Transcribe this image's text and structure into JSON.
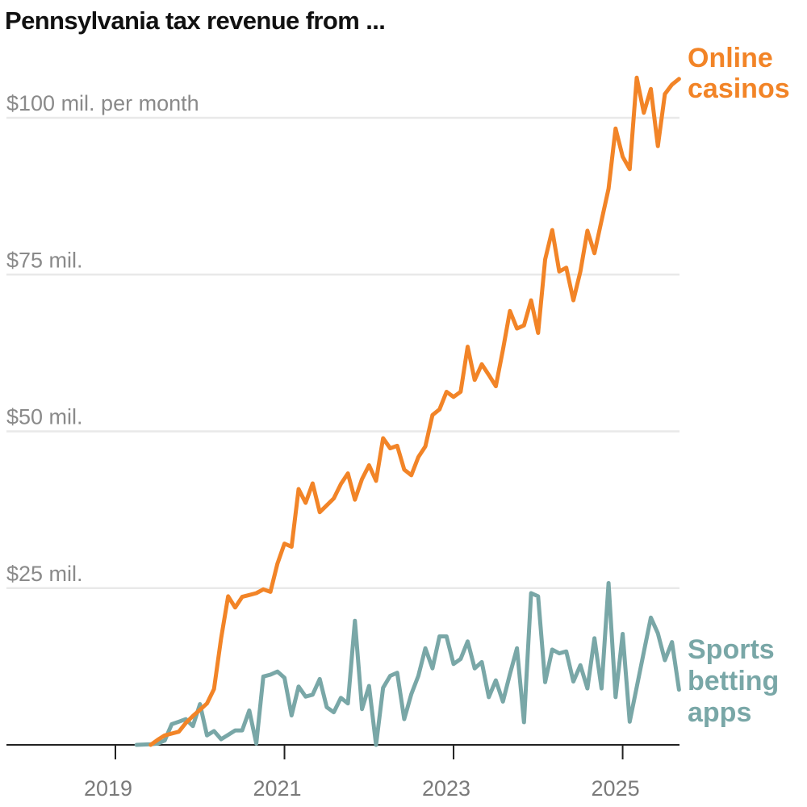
{
  "chart_data": {
    "type": "line",
    "title": "Pennsylvania tax revenue from ...",
    "y_unit": "$ millions per month",
    "ylim": [
      0,
      110
    ],
    "y_ticks": [
      {
        "value": 25,
        "label": "$25 mil."
      },
      {
        "value": 50,
        "label": "$50 mil."
      },
      {
        "value": 75,
        "label": "$75 mil."
      },
      {
        "value": 100,
        "label": "$100 mil. per month"
      }
    ],
    "x_ticks": [
      {
        "value": "2019-01",
        "label": "2019"
      },
      {
        "value": "2021-01",
        "label": "2021"
      },
      {
        "value": "2023-01",
        "label": "2023"
      },
      {
        "value": "2025-01",
        "label": "2025"
      }
    ],
    "xlim": [
      "2017-11",
      "2025-09"
    ],
    "grid": true,
    "series": [
      {
        "name": "Online casinos",
        "label_lines": [
          "Online",
          "casinos"
        ],
        "color": "#f28427",
        "start": "2019-06",
        "frequency": "monthly",
        "values": [
          0,
          0.8,
          1.5,
          1.8,
          2.1,
          3.5,
          4.6,
          5.6,
          6.6,
          8.9,
          17.0,
          23.7,
          21.9,
          23.6,
          23.9,
          24.2,
          24.8,
          24.4,
          28.9,
          32.1,
          31.6,
          40.8,
          38.6,
          41.7,
          37.1,
          38.2,
          39.3,
          41.6,
          43.3,
          39.1,
          42.4,
          44.6,
          42.1,
          48.9,
          47.3,
          47.7,
          43.9,
          43.0,
          45.9,
          47.6,
          52.6,
          53.5,
          56.3,
          55.5,
          56.3,
          63.5,
          58.2,
          60.7,
          59.0,
          57.2,
          63.0,
          69.2,
          66.4,
          66.9,
          70.9,
          65.7,
          77.4,
          82.1,
          75.5,
          76.1,
          70.9,
          75.5,
          82.0,
          78.4,
          83.6,
          88.7,
          98.3,
          93.8,
          91.8,
          106.4,
          100.8,
          104.6,
          95.5,
          103.8,
          105.3,
          106.2
        ]
      },
      {
        "name": "Sports betting apps",
        "label_lines": [
          "Sports",
          "betting",
          "apps"
        ],
        "color": "#79a7a7",
        "start": "2019-04",
        "frequency": "monthly",
        "values": [
          0,
          0.05,
          0.1,
          0.2,
          0.7,
          3.3,
          3.7,
          4.1,
          3.0,
          6.5,
          1.5,
          2.2,
          0.9,
          1.6,
          2.3,
          2.3,
          5.5,
          0.2,
          10.9,
          11.2,
          11.7,
          10.7,
          4.7,
          9.3,
          7.7,
          8.0,
          10.5,
          6.0,
          5.2,
          7.5,
          6.6,
          19.8,
          5.7,
          9.4,
          0,
          9.1,
          11.0,
          11.5,
          4.1,
          8.1,
          11.0,
          15.4,
          12.2,
          17.3,
          17.3,
          12.9,
          13.7,
          16.5,
          12.2,
          13.2,
          7.6,
          10.3,
          6.9,
          11.3,
          15.4,
          3.6,
          24.2,
          23.7,
          10.0,
          15.2,
          14.6,
          14.9,
          10.1,
          12.7,
          9.0,
          17.0,
          9.0,
          25.8,
          7.6,
          17.7,
          3.7,
          9.2,
          14.8,
          20.3,
          17.8,
          13.5,
          16.4,
          8.8
        ]
      }
    ]
  }
}
